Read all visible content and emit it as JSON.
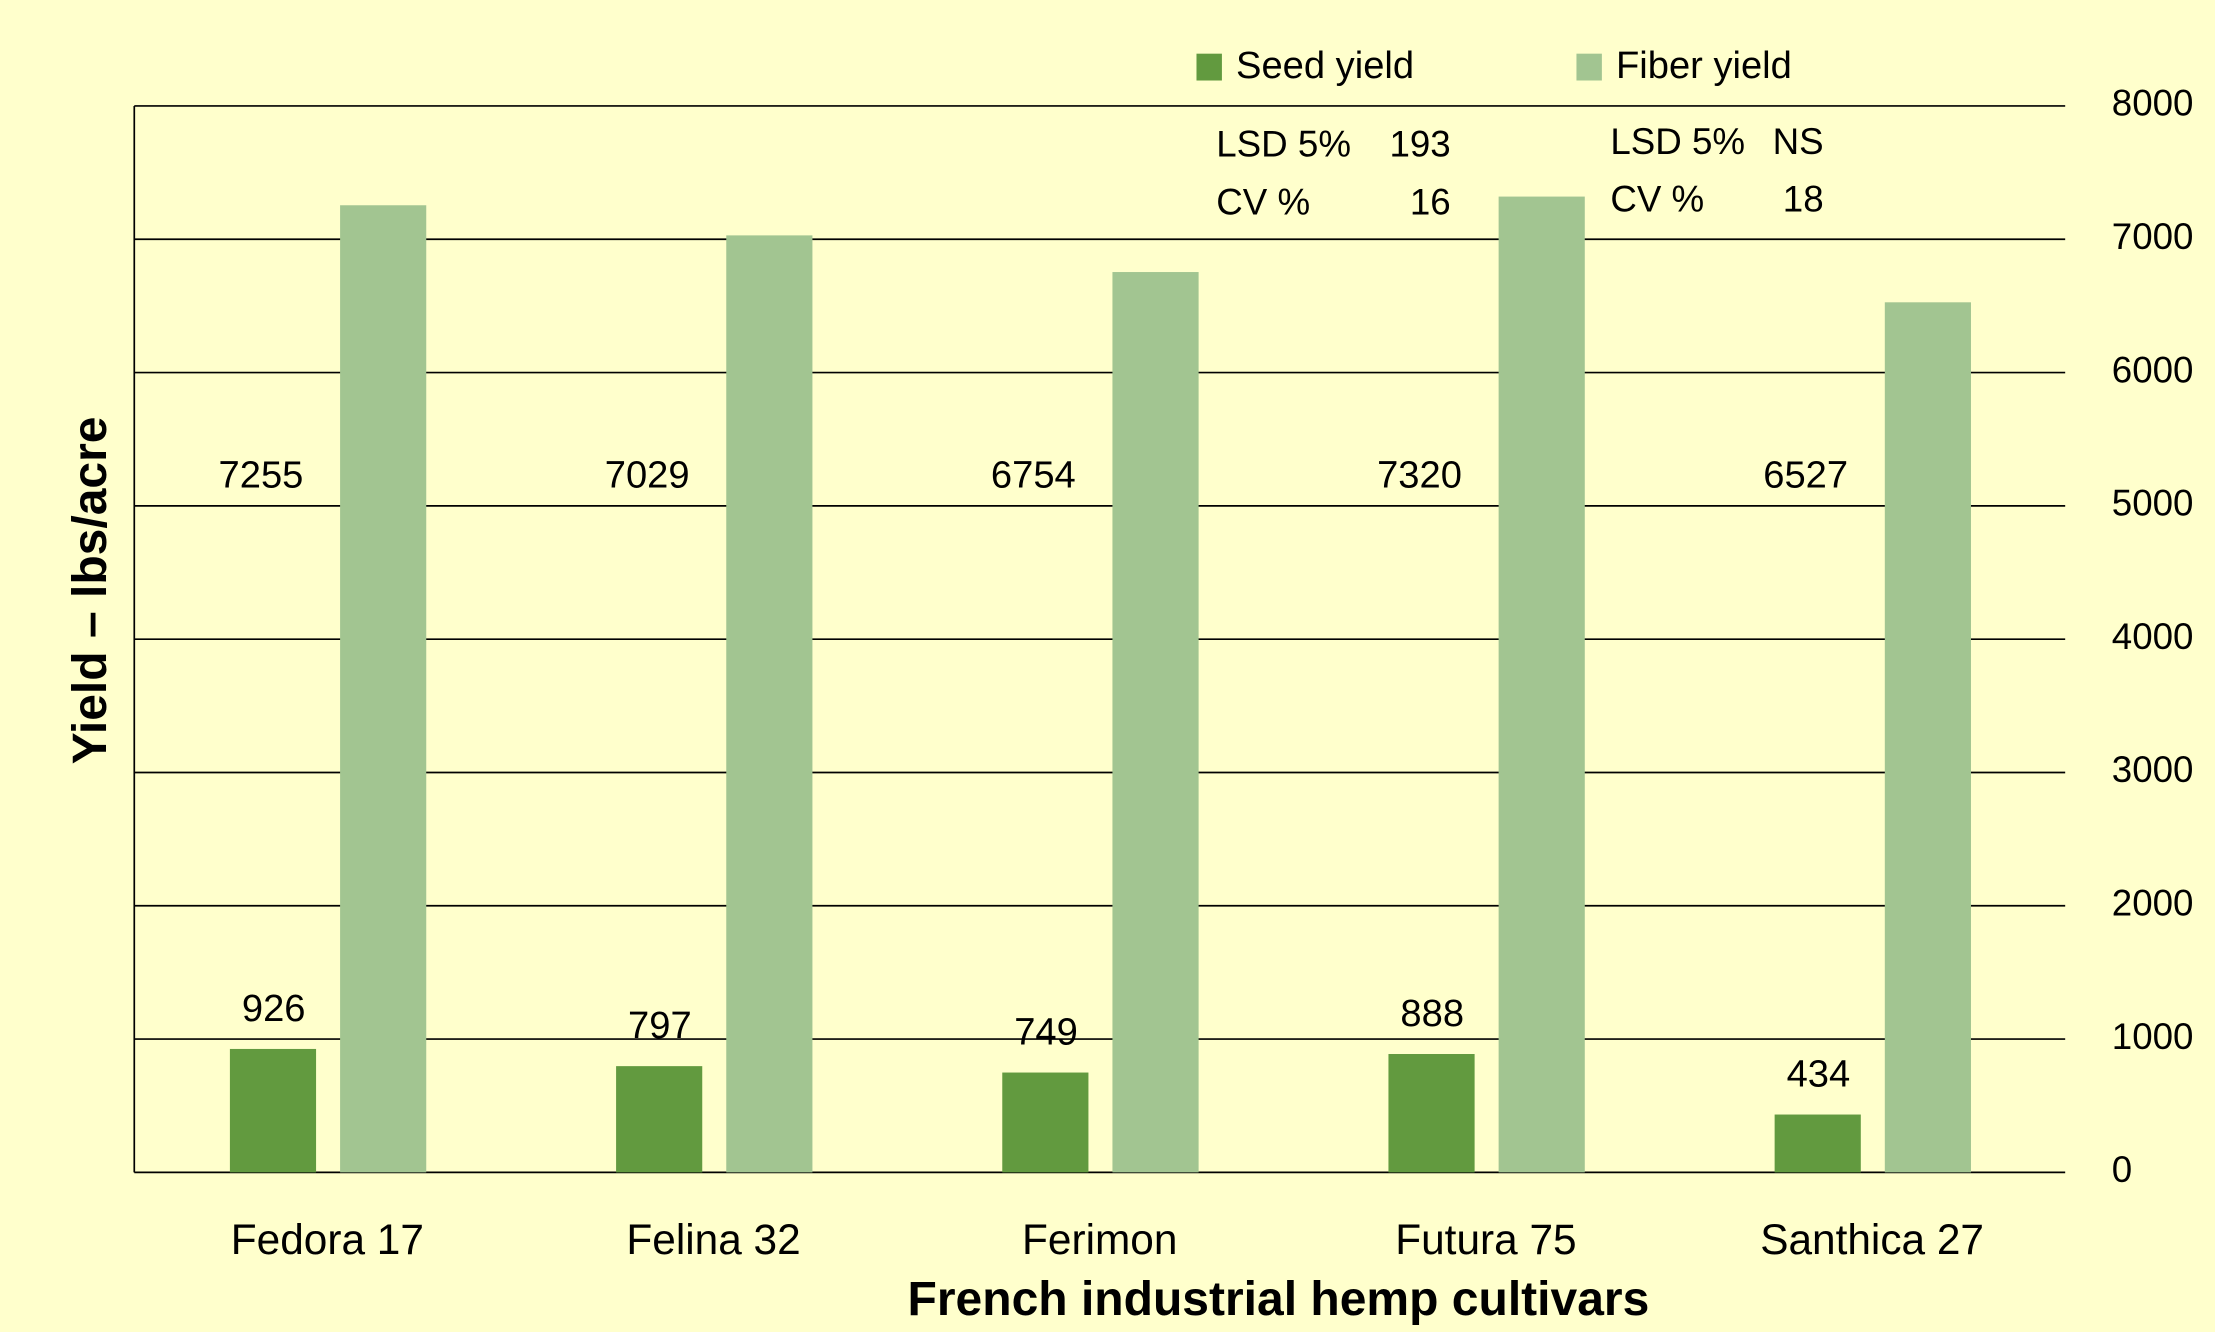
{
  "chart_data": {
    "type": "bar",
    "x_label": "French industrial hemp cultivars",
    "y_label": "Yield – lbs/acre",
    "categories": [
      "Fedora 17",
      "Felina 32",
      "Ferimon",
      "Futura 75",
      "Santhica 27"
    ],
    "series": [
      {
        "name": "Seed yield",
        "color": "#629a3f",
        "values": [
          926,
          797,
          749,
          888,
          434
        ]
      },
      {
        "name": "Fiber yield",
        "color": "#a2c591",
        "values": [
          7255,
          7029,
          6754,
          7320,
          6527
        ]
      }
    ],
    "annotations": [
      [
        "LSD 5%",
        "193"
      ],
      [
        "CV %",
        "16"
      ],
      [
        "LSD 5%",
        "NS"
      ],
      [
        "CV %",
        "18"
      ]
    ],
    "ylim": [
      0,
      8000
    ],
    "yticks": [
      0,
      1000,
      2000,
      3000,
      4000,
      5000,
      6000,
      7000,
      8000
    ],
    "y_axis_side": "right",
    "grid": true
  }
}
